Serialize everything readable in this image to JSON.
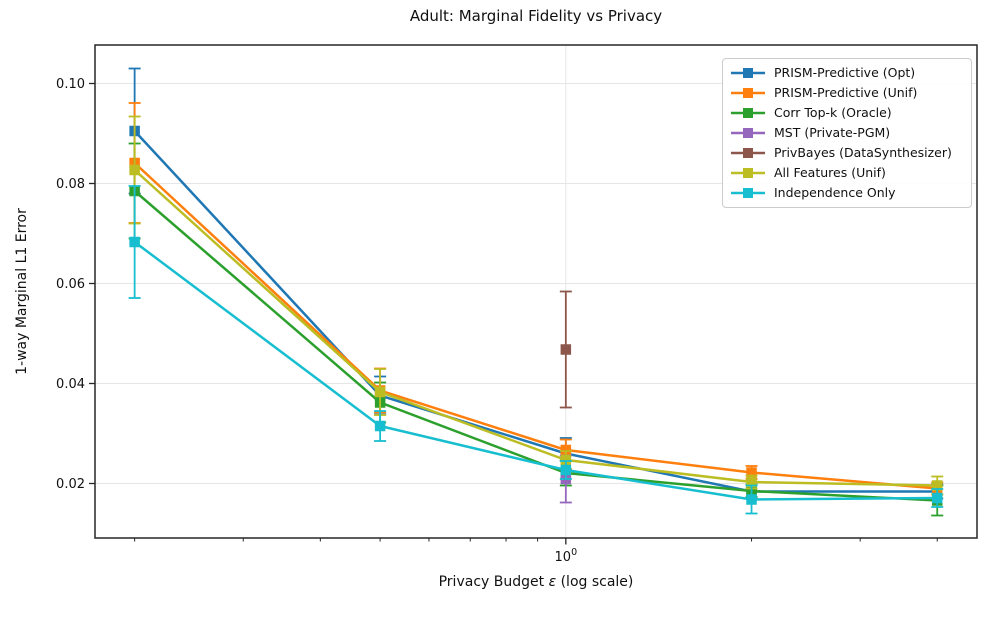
{
  "chart_data": {
    "type": "line",
    "title": "Adult: Marginal Fidelity vs Privacy",
    "xlabel": "Privacy Budget ε (log scale)",
    "xlabel_parts": {
      "prefix": "Privacy Budget ",
      "symbol": "ε",
      "suffix": " (log scale)"
    },
    "ylabel": "1-way Marginal L1 Error",
    "x_scale": "log",
    "xlim": [
      0.1725,
      4.64
    ],
    "ylim": [
      0.0091,
      0.1077
    ],
    "x_ticks_major": [
      1
    ],
    "x_tick_major_label": {
      "base": "10",
      "exp": "0",
      "display": "10⁰"
    },
    "x_ticks_minor": [
      0.2,
      0.3,
      0.4,
      0.5,
      0.6,
      0.7,
      0.8,
      0.9,
      2,
      3,
      4
    ],
    "y_ticks": [
      0.02,
      0.04,
      0.06,
      0.08,
      0.1
    ],
    "y_tick_labels": [
      "0.02",
      "0.04",
      "0.06",
      "0.08",
      "0.10"
    ],
    "grid": true,
    "grid_color": "#e6e6e6",
    "spine_color": "#262626",
    "legend_position": "upper right",
    "series": [
      {
        "name": "PRISM-Predictive (Opt)",
        "color": "#1f77b4",
        "x": [
          0.2,
          0.5,
          1.0,
          2.0,
          4.0
        ],
        "y": [
          0.0905,
          0.0376,
          0.026,
          0.0184,
          0.0184
        ],
        "yerr": [
          0.0125,
          0.0038,
          0.0031,
          0.0014,
          0.0014
        ]
      },
      {
        "name": "PRISM-Predictive (Unif)",
        "color": "#ff7f0e",
        "x": [
          0.2,
          0.5,
          1.0,
          2.0,
          4.0
        ],
        "y": [
          0.0841,
          0.0386,
          0.0267,
          0.0222,
          0.019
        ],
        "yerr": [
          0.012,
          0.0044,
          0.0021,
          0.0013,
          0.0012
        ]
      },
      {
        "name": "Corr Top-k (Oracle)",
        "color": "#2ca02c",
        "x": [
          0.2,
          0.5,
          1.0,
          2.0,
          4.0
        ],
        "y": [
          0.0785,
          0.0362,
          0.0221,
          0.0185,
          0.0166
        ],
        "yerr": [
          0.0095,
          0.004,
          0.0025,
          0.0012,
          0.003
        ]
      },
      {
        "name": "MST (Private-PGM)",
        "color": "#9467bd",
        "x": [
          1.0
        ],
        "y": [
          0.0209
        ],
        "yerr": [
          0.0047
        ]
      },
      {
        "name": "PrivBayes (DataSynthesizer)",
        "color": "#8c564b",
        "x": [
          1.0
        ],
        "y": [
          0.0468
        ],
        "yerr": [
          0.0116
        ]
      },
      {
        "name": "All Features (Unif)",
        "color": "#bcbd22",
        "x": [
          0.2,
          0.5,
          1.0,
          2.0,
          4.0
        ],
        "y": [
          0.0827,
          0.0383,
          0.0247,
          0.0203,
          0.0196
        ],
        "yerr": [
          0.0107,
          0.0046,
          0.0018,
          0.0013,
          0.0018
        ]
      },
      {
        "name": "Independence Only",
        "color": "#17becf",
        "x": [
          0.2,
          0.5,
          1.0,
          2.0,
          4.0
        ],
        "y": [
          0.0683,
          0.0315,
          0.0227,
          0.0168,
          0.0171
        ],
        "yerr": [
          0.0112,
          0.003,
          0.0018,
          0.0028,
          0.0018
        ]
      }
    ]
  }
}
